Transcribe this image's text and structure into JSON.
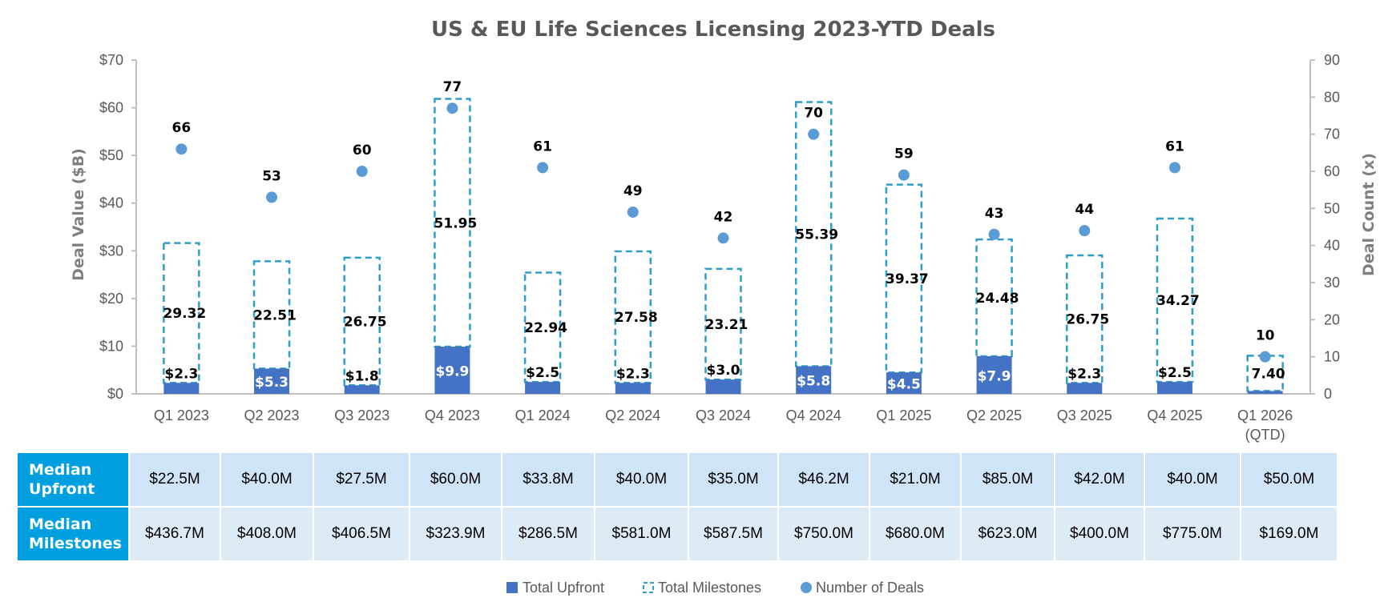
{
  "chart_data": {
    "type": "bar",
    "title": "US & EU Life Sciences Licensing 2023-YTD Deals",
    "ylabel": "Deal Value ($B)",
    "y2label": "Deal Count (x)",
    "ylim": [
      0,
      70
    ],
    "y2lim": [
      0,
      90
    ],
    "yticks": [
      "$0",
      "$10",
      "$20",
      "$30",
      "$40",
      "$50",
      "$60",
      "$70"
    ],
    "y2ticks": [
      "0",
      "10",
      "20",
      "30",
      "40",
      "50",
      "60",
      "70",
      "80",
      "90"
    ],
    "categories": [
      [
        "Q1 2023"
      ],
      [
        "Q2 2023"
      ],
      [
        "Q3 2023"
      ],
      [
        "Q4 2023"
      ],
      [
        "Q1 2024"
      ],
      [
        "Q2 2024"
      ],
      [
        "Q3 2024"
      ],
      [
        "Q4 2024"
      ],
      [
        "Q1 2025"
      ],
      [
        "Q2 2025"
      ],
      [
        "Q3 2025"
      ],
      [
        "Q4 2025"
      ],
      [
        "Q1 2026",
        "(QTD)"
      ]
    ],
    "series": [
      {
        "name": "Total Upfront",
        "type": "stacked-bar",
        "color": "#4472c4",
        "values": [
          2.3,
          5.3,
          1.8,
          9.9,
          2.5,
          2.3,
          3.0,
          5.8,
          4.5,
          7.9,
          2.3,
          2.5,
          0.6
        ],
        "labels": [
          "$2.3",
          "$5.3",
          "$1.8",
          "$9.9",
          "$2.5",
          "$2.3",
          "$3.0",
          "$5.8",
          "$4.5",
          "$7.9",
          "$2.3",
          "$2.5",
          ""
        ]
      },
      {
        "name": "Total Milestones",
        "type": "stacked-bar-dashed",
        "color": "#2e9ec7",
        "values": [
          29.32,
          22.51,
          26.75,
          51.95,
          22.94,
          27.58,
          23.21,
          55.39,
          39.37,
          24.48,
          26.75,
          34.27,
          7.4
        ],
        "labels": [
          "29.32",
          "22.51",
          "26.75",
          "51.95",
          "22.94",
          "27.58",
          "23.21",
          "55.39",
          "39.37",
          "24.48",
          "26.75",
          "34.27",
          "7.40"
        ]
      },
      {
        "name": "Number of Deals",
        "type": "scatter",
        "axis": "right",
        "color": "#5b9bd5",
        "values": [
          66,
          53,
          60,
          77,
          61,
          49,
          42,
          70,
          59,
          43,
          44,
          61,
          10
        ]
      }
    ],
    "legend": "bottom"
  },
  "table": {
    "rows": [
      {
        "header": [
          "Median",
          "Upfront"
        ],
        "values": [
          "$22.5M",
          "$40.0M",
          "$27.5M",
          "$60.0M",
          "$33.8M",
          "$40.0M",
          "$35.0M",
          "$46.2M",
          "$21.0M",
          "$85.0M",
          "$42.0M",
          "$40.0M",
          "$50.0M"
        ]
      },
      {
        "header": [
          "Median",
          "Milestones"
        ],
        "values": [
          "$436.7M",
          "$408.0M",
          "$406.5M",
          "$323.9M",
          "$286.5M",
          "$581.0M",
          "$587.5M",
          "$750.0M",
          "$680.0M",
          "$623.0M",
          "$400.0M",
          "$775.0M",
          "$169.0M"
        ]
      }
    ]
  },
  "legend": {
    "items": [
      "Total Upfront",
      "Total Milestones",
      "Number of Deals"
    ]
  }
}
